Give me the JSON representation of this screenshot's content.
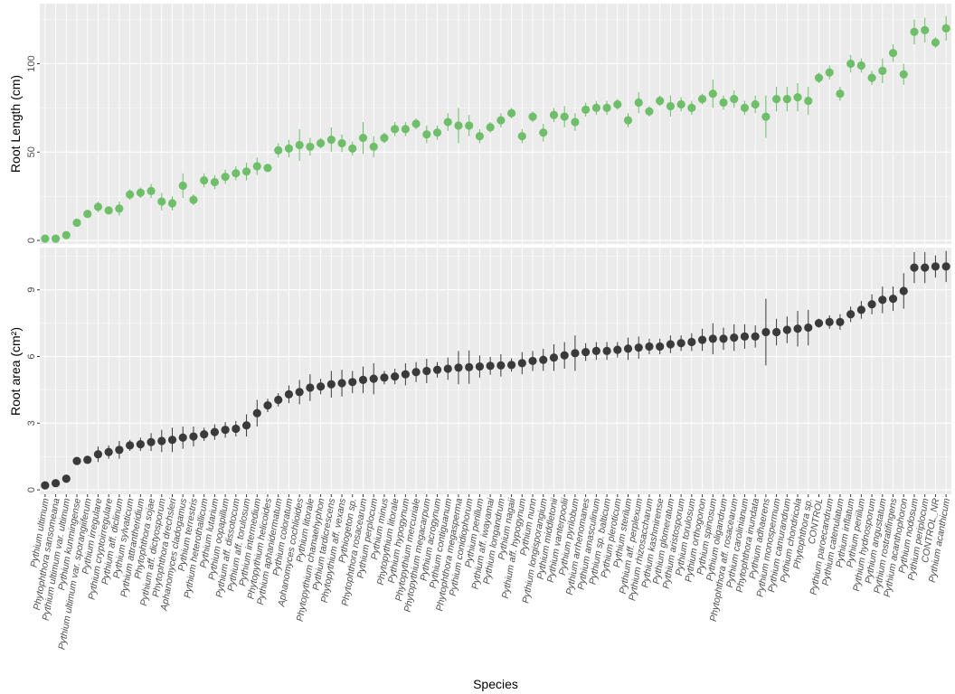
{
  "colors": {
    "panel_bg": "#EBEBEB",
    "grid_major": "#FFFFFF",
    "top_series": "#6FBF6A",
    "bottom_series": "#3A3A3A"
  },
  "chart_data": {
    "type": "scatter",
    "xlabel": "Species",
    "grid": true,
    "species": [
      "Pythium ultimum",
      "Phytophthora sansomeana",
      "Pythium ultimum var. ultimum",
      "Pythium kunmingense",
      "Pythium ultimum var. sporangiiferum",
      "Pythium irregulare",
      "Pythium cryptoirregulare",
      "Pythium aff. diclinum",
      "Pythium sylvaticum",
      "Pythium attrantheridium",
      "Phytophthora sojae",
      "Pythium aff. dictyosporum",
      "Phytophthora drechsleri",
      "Aphanomyces cladogamus",
      "Pythium terrestris",
      "Pythium heterothallicum",
      "Pythium lutarium",
      "Pythium oopapillum",
      "Pythium aff. dissotocum",
      "Pythium aff. torulosum",
      "Pythium intermedium",
      "Phytopythium helicoides",
      "Pythium aphanidermatum",
      "Pythium coloratum",
      "Aphanomyces cochlioides",
      "Pythium litorale",
      "Phytopythium chamaehyphon",
      "Pythium tardicrescens",
      "Phytopythium aff. vexans",
      "Pythiogeton sp.",
      "Phytophthora rosacearum",
      "Pythium perplocum",
      "Pythium minus",
      "Phytopythium litorale",
      "Pythium hypogynum",
      "Phytopythium mercuriale",
      "Phytopythium megacarpum",
      "Pythium acrogynum",
      "Pythium contiguanum",
      "Phytophthora megasperma",
      "Pythium conidiophorum",
      "Pythium perillum",
      "Pythium aff. iwayamai",
      "Pythium longandrum",
      "Pythium nagaii",
      "Pythium aff. hypogynum",
      "Pythium nunn",
      "Pythium longisporangium",
      "Pythium middletonii",
      "Pythium vanterpoolii",
      "Pythium pyrilobum",
      "Pythium arrhenomanes",
      "Pythium amasculinum",
      "Pythium sp. balticum",
      "Pythium pleroticum",
      "Pythium sterilum",
      "Pythium aff. perplexum",
      "Pythium rhizosaccharum",
      "Pythium kashmirense",
      "Pythium glomeratum",
      "Pythium aristosporum",
      "Pythium torulosum",
      "Pythium orthogonon",
      "Pythium spinosum",
      "Pythium oligandrum",
      "Phytophthora aff. rosacearum",
      "Pythium carolinianum",
      "Phytophthora inundata",
      "Pythium adhaerens",
      "Pythium monospermum",
      "Pythium camurandrum",
      "Pythium chondricola",
      "Phytophthora sp.",
      "CONTROL",
      "Pythium paroecandrum",
      "Pythium catenulatum",
      "Pythium inflatum",
      "Pythium periilum",
      "Pythium hydnosporum",
      "Pythium angustatum",
      "Pythium rostratifingens",
      "Pythium acanthophoron",
      "Pythium nodosum",
      "Pythium periplocum",
      "CONTROL_NR",
      "Pythium acanthicum"
    ],
    "panels": [
      {
        "ylabel": "Root Length (cm)",
        "ylim": [
          -2,
          134
        ],
        "yticks": [
          0,
          50,
          100
        ],
        "series": [
          {
            "values": [
              1,
              1,
              3,
              10,
              15,
              19,
              17,
              18,
              26,
              27,
              28,
              22,
              21,
              31,
              23,
              34,
              33,
              36,
              38,
              39,
              42,
              41,
              51,
              52,
              54,
              53,
              55,
              57,
              55,
              52,
              58,
              53,
              58,
              63,
              63,
              66,
              60,
              61,
              67,
              65,
              65,
              59,
              64,
              68,
              72,
              59,
              70,
              61,
              71,
              70,
              67,
              74,
              75,
              75,
              77,
              68,
              78,
              73,
              79,
              76,
              77,
              75,
              80,
              83,
              78,
              80,
              75,
              77,
              70,
              80,
              80,
              81,
              79,
              92,
              95,
              83,
              100,
              99,
              92,
              96,
              106,
              94,
              118,
              119,
              112,
              120
            ],
            "errors": [
              1,
              1,
              1,
              1,
              2,
              3,
              2,
              4,
              3,
              3,
              4,
              5,
              4,
              7,
              3,
              4,
              4,
              4,
              4,
              5,
              5,
              2,
              4,
              5,
              9,
              5,
              3,
              7,
              5,
              4,
              9,
              6,
              3,
              4,
              4,
              3,
              5,
              4,
              5,
              10,
              6,
              4,
              3,
              4,
              3,
              4,
              3,
              5,
              4,
              6,
              5,
              4,
              4,
              4,
              3,
              4,
              6,
              3,
              3,
              6,
              4,
              4,
              3,
              8,
              4,
              5,
              4,
              5,
              12,
              7,
              7,
              8,
              8,
              3,
              4,
              4,
              5,
              4,
              4,
              7,
              5,
              6,
              7,
              7,
              3,
              7
            ]
          }
        ]
      },
      {
        "ylabel": "Root area (cm²)",
        "ylim": [
          -0.2,
          10.9
        ],
        "yticks": [
          0,
          3,
          6,
          9
        ],
        "series": [
          {
            "values": [
              0.2,
              0.3,
              0.5,
              1.3,
              1.35,
              1.6,
              1.7,
              1.8,
              2.0,
              2.05,
              2.15,
              2.2,
              2.25,
              2.35,
              2.4,
              2.5,
              2.6,
              2.7,
              2.75,
              2.9,
              3.45,
              3.8,
              4.05,
              4.3,
              4.4,
              4.6,
              4.65,
              4.75,
              4.8,
              4.85,
              4.95,
              5.0,
              5.05,
              5.1,
              5.2,
              5.3,
              5.35,
              5.4,
              5.45,
              5.5,
              5.52,
              5.55,
              5.58,
              5.6,
              5.62,
              5.7,
              5.8,
              5.85,
              5.95,
              6.05,
              6.15,
              6.2,
              6.25,
              6.25,
              6.3,
              6.35,
              6.4,
              6.45,
              6.45,
              6.55,
              6.6,
              6.65,
              6.75,
              6.8,
              6.8,
              6.85,
              6.9,
              6.9,
              7.1,
              7.1,
              7.2,
              7.25,
              7.3,
              7.5,
              7.55,
              7.55,
              7.9,
              8.1,
              8.35,
              8.55,
              8.6,
              8.95,
              10.0,
              10.0,
              10.05,
              10.05
            ],
            "errors": [
              0.05,
              0.1,
              0.1,
              0.15,
              0.15,
              0.35,
              0.3,
              0.4,
              0.25,
              0.3,
              0.4,
              0.5,
              0.55,
              0.5,
              0.45,
              0.3,
              0.35,
              0.35,
              0.35,
              0.5,
              0.6,
              0.3,
              0.3,
              0.4,
              0.55,
              0.6,
              0.35,
              0.6,
              0.6,
              0.5,
              0.6,
              0.7,
              0.3,
              0.35,
              0.5,
              0.45,
              0.55,
              0.35,
              0.5,
              0.75,
              0.75,
              0.5,
              0.4,
              0.5,
              0.3,
              0.5,
              0.45,
              0.5,
              0.6,
              0.6,
              0.8,
              0.4,
              0.4,
              0.4,
              0.35,
              0.5,
              0.5,
              0.35,
              0.35,
              0.4,
              0.35,
              0.4,
              0.5,
              0.7,
              0.5,
              0.6,
              0.55,
              0.5,
              1.5,
              0.6,
              0.6,
              0.8,
              0.8,
              0.2,
              0.3,
              0.35,
              0.35,
              0.4,
              0.45,
              0.6,
              0.55,
              0.8,
              0.7,
              0.7,
              0.5,
              0.7
            ]
          }
        ]
      }
    ]
  }
}
